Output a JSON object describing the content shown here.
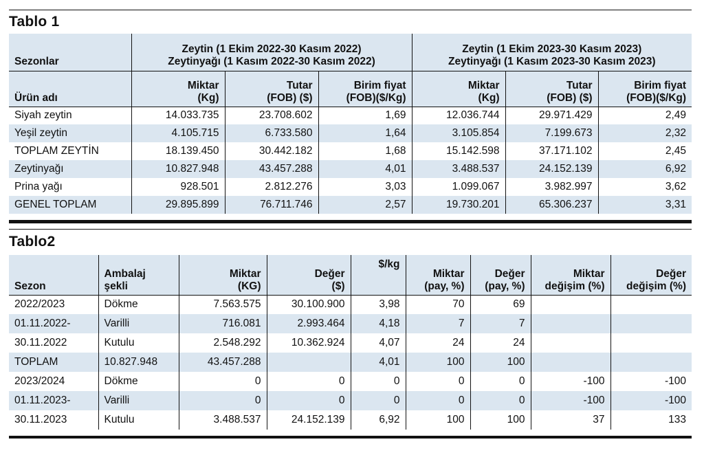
{
  "tablo1": {
    "title": "Tablo 1",
    "sezon_label": "Sezonlar",
    "urun_label": "Ürün adı",
    "period1_line1": "Zeytin (1 Ekim 2022-30 Kasım 2022)",
    "period1_line2": "Zeytinyağı (1 Kasım 2022-30 Kasım 2022)",
    "period2_line1": "Zeytin (1 Ekim 2023-30 Kasım 2023)",
    "period2_line2": "Zeytinyağı (1 Kasım 2023-30 Kasım 2023)",
    "col_miktar_1": "Miktar",
    "col_miktar_2": "(Kg)",
    "col_tutar_1": "Tutar",
    "col_tutar_2": "(FOB) ($)",
    "col_birim_1": "Birim fiyat",
    "col_birim_2": "(FOB)($/Kg)",
    "rows": [
      [
        "Siyah zeytin",
        "14.033.735",
        "23.708.602",
        "1,69",
        "12.036.744",
        "29.971.429",
        "2,49"
      ],
      [
        "Yeşil zeytin",
        "4.105.715",
        "6.733.580",
        "1,64",
        "3.105.854",
        "7.199.673",
        "2,32"
      ],
      [
        "TOPLAM ZEYTİN",
        "18.139.450",
        "30.442.182",
        "1,68",
        "15.142.598",
        "37.171.102",
        "2,45"
      ],
      [
        "Zeytinyağı",
        "10.827.948",
        "43.457.288",
        "4,01",
        "3.488.537",
        "24.152.139",
        "6,92"
      ],
      [
        "Prina yağı",
        "928.501",
        "2.812.276",
        "3,03",
        "1.099.067",
        "3.982.997",
        "3,62"
      ],
      [
        "GENEL TOPLAM",
        "29.895.899",
        "76.711.746",
        "2,57",
        "19.730.201",
        "65.306.237",
        "3,31"
      ]
    ]
  },
  "tablo2": {
    "title": "Tablo2",
    "h_sezon": "Sezon",
    "h_ambalaj_1": "Ambalaj",
    "h_ambalaj_2": "şekli",
    "h_miktar_1": "Miktar",
    "h_miktar_2": "(KG)",
    "h_deger_1": "Değer",
    "h_deger_2": "($)",
    "h_birim": "$/kg",
    "h_mpay_1": "Miktar",
    "h_mpay_2": "(pay, %)",
    "h_dpay_1": "Değer",
    "h_dpay_2": "(pay, %)",
    "h_mdeg_1": "Miktar",
    "h_mdeg_2": "değişim (%)",
    "h_ddeg_1": "Değer",
    "h_ddeg_2": "değişim (%)",
    "rows": [
      [
        "2022/2023",
        "Dökme",
        "7.563.575",
        "30.100.900",
        "3,98",
        "70",
        "69",
        "",
        ""
      ],
      [
        "01.11.2022-",
        "Varilli",
        "716.081",
        "2.993.464",
        "4,18",
        "7",
        "7",
        "",
        ""
      ],
      [
        "30.11.2022",
        "Kutulu",
        "2.548.292",
        "10.362.924",
        "4,07",
        "24",
        "24",
        "",
        ""
      ],
      [
        "TOPLAM",
        "10.827.948",
        "43.457.288",
        "",
        "4,01",
        "100",
        "100",
        "",
        ""
      ],
      [
        "2023/2024",
        "Dökme",
        "0",
        "0",
        "0",
        "0",
        "0",
        "-100",
        "-100"
      ],
      [
        "01.11.2023-",
        "Varilli",
        "0",
        "0",
        "0",
        "0",
        "0",
        "-100",
        "-100"
      ],
      [
        "30.11.2023",
        "Kutulu",
        "3.488.537",
        "24.152.139",
        "6,92",
        "100",
        "100",
        "37",
        "133"
      ]
    ]
  }
}
